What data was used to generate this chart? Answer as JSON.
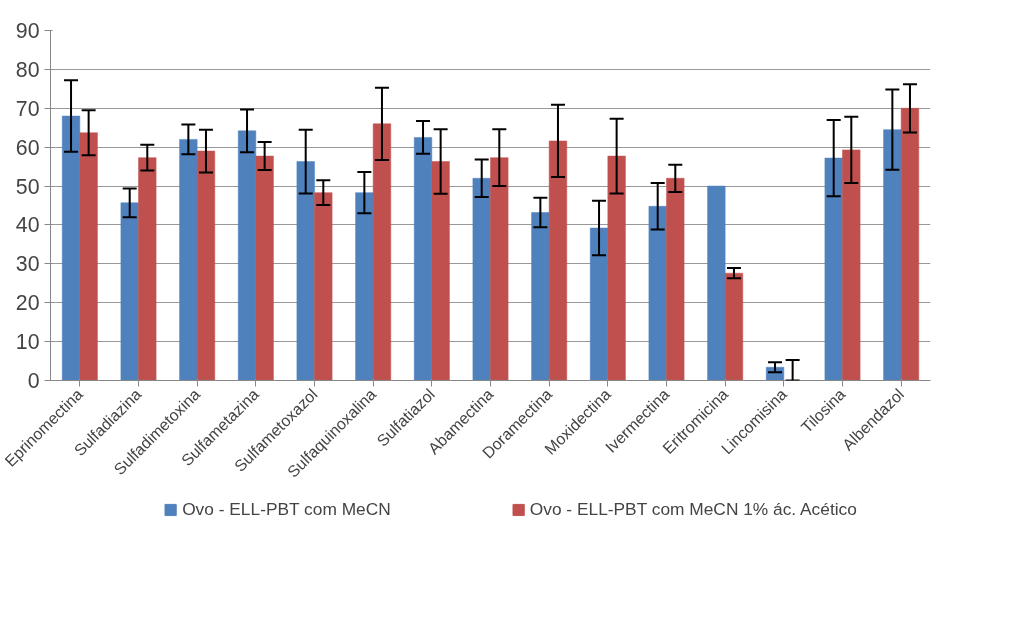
{
  "chart_data": {
    "type": "bar",
    "categories": [
      "Eprinomectina",
      "Sulfadiazina",
      "Sulfadimetoxina",
      "Sulfametazina",
      "Sulfametoxazol",
      "Sulfaquinoxalina",
      "Sulfatiazol",
      "Abamectina",
      "Doramectina",
      "Moxidectina",
      "Ivermectina",
      "Eritromicina",
      "Lincomisina",
      "Tilosina",
      "Albendazol"
    ],
    "series": [
      {
        "name": "Ovo - ELL-PBT com MeCN",
        "color": "#4f81bd",
        "values": [
          68,
          45.7,
          62,
          64.2,
          56.3,
          48.3,
          62.5,
          52,
          43.2,
          39.2,
          44.8,
          50,
          3.4,
          57.2,
          64.5
        ],
        "errors": [
          9.2,
          3.7,
          3.8,
          5.5,
          8.2,
          5.3,
          4.2,
          4.8,
          3.8,
          7,
          6,
          null,
          1.3,
          9.8,
          10.3
        ]
      },
      {
        "name": "Ovo - ELL-PBT com MeCN 1% ác. Acético",
        "color": "#c0504d",
        "values": [
          63.7,
          57.3,
          59,
          57.7,
          48.3,
          66,
          56.3,
          57.3,
          61.6,
          57.7,
          52,
          27.6,
          0,
          59.3,
          70
        ],
        "errors": [
          5.8,
          3.3,
          5.5,
          3.6,
          3.2,
          9.3,
          8.3,
          7.3,
          9.3,
          9.6,
          3.5,
          1.3,
          [
            0,
            5.3
          ],
          8.5,
          6.2
        ]
      }
    ],
    "ylim": [
      0,
      90
    ],
    "yticks": [
      0,
      10,
      20,
      30,
      40,
      50,
      60,
      70,
      80,
      90
    ],
    "grid": "y",
    "legend": "bottom"
  }
}
